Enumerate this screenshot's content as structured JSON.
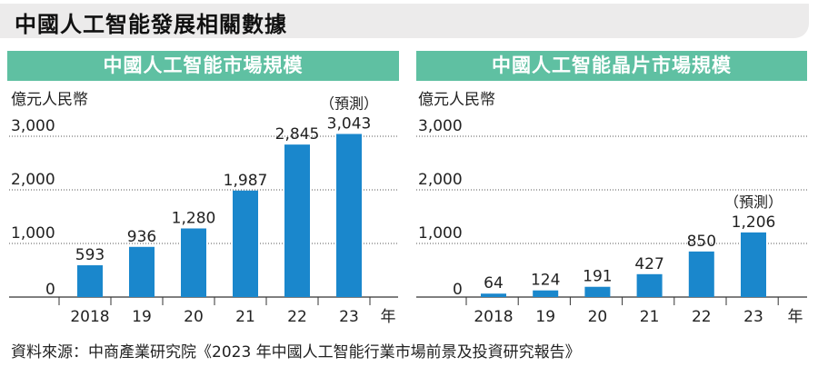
{
  "title": "中國人工智能發展相關數據",
  "source": "資料來源：中商產業研究院《2023 年中國人工智能行業市場前景及投資研究報告》",
  "colors": {
    "bar": "#1a87cc",
    "header": "#5fc0a2",
    "title_bg": "#ecebeb"
  },
  "chart_data": [
    {
      "type": "bar",
      "title": "中國人工智能市場規模",
      "unit": "億元人民幣",
      "categories": [
        "2018",
        "19",
        "20",
        "21",
        "22",
        "23"
      ],
      "values": [
        593,
        936,
        1280,
        1987,
        2845,
        3043
      ],
      "value_labels": [
        "593",
        "936",
        "1,280",
        "1,987",
        "2,845",
        "3,043"
      ],
      "y_ticks": [
        "0",
        "1,000",
        "2,000",
        "3,000"
      ],
      "ylim": [
        0,
        3000
      ],
      "x_unit": "年",
      "projection_label": "（預測）",
      "projected_category": "23"
    },
    {
      "type": "bar",
      "title": "中國人工智能晶片市場規模",
      "unit": "億元人民幣",
      "categories": [
        "2018",
        "19",
        "20",
        "21",
        "22",
        "23"
      ],
      "values": [
        64,
        124,
        191,
        427,
        850,
        1206
      ],
      "value_labels": [
        "64",
        "124",
        "191",
        "427",
        "850",
        "1,206"
      ],
      "y_ticks": [
        "0",
        "1,000",
        "2,000",
        "3,000"
      ],
      "ylim": [
        0,
        3000
      ],
      "x_unit": "年",
      "projection_label": "（預測）",
      "projected_category": "23"
    }
  ]
}
